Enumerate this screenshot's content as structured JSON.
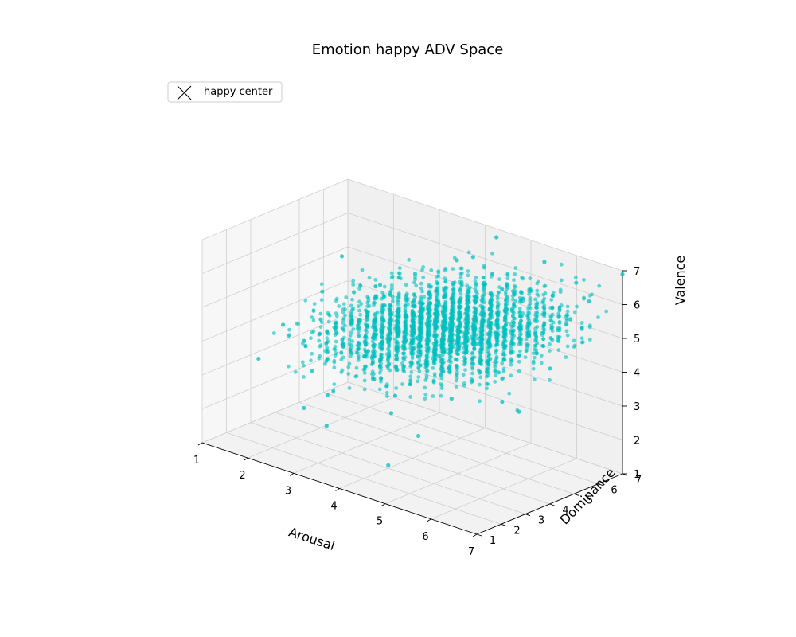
{
  "chart_data": {
    "type": "scatter",
    "projection": "3d",
    "title": "Emotion happy ADV Space",
    "xlabel": "Arousal",
    "ylabel": "Dominance",
    "zlabel": "Valence",
    "xlim": [
      1,
      7
    ],
    "ylim": [
      1,
      7
    ],
    "zlim": [
      1,
      7
    ],
    "x_ticks": [
      "1",
      "2",
      "3",
      "4",
      "5",
      "6",
      "7"
    ],
    "y_ticks": [
      "1",
      "2",
      "3",
      "4",
      "5",
      "6",
      "7"
    ],
    "z_ticks": [
      "1",
      "2",
      "3",
      "4",
      "5",
      "6",
      "7"
    ],
    "grid": true,
    "legend": {
      "placement": "top-left",
      "entries": [
        {
          "label": "happy center",
          "marker": "x",
          "color": "#000000"
        }
      ]
    },
    "series": [
      {
        "color": "#00bfbf",
        "marker": "dot",
        "cluster_summary": "dense cloud spanning Arousal ~1.3-7, Dominance ~1.5-7, Valence ~2-7, centered near (4.5, 4.5, 4.8)",
        "points": [
          [
            1.5,
            5.0,
            4.5
          ],
          [
            1.4,
            6.0,
            5.2
          ],
          [
            1.7,
            2.0,
            3.5
          ],
          [
            1.6,
            3.2,
            4.1
          ],
          [
            2.0,
            4.0,
            4.2
          ],
          [
            2.2,
            3.0,
            3.8
          ],
          [
            2.5,
            5.5,
            5.0
          ],
          [
            2.6,
            2.5,
            3.4
          ],
          [
            2.9,
            4.5,
            4.4
          ],
          [
            3.0,
            6.0,
            5.4
          ],
          [
            3.1,
            2.2,
            3.0
          ],
          [
            3.3,
            3.5,
            4.0
          ],
          [
            3.5,
            5.0,
            4.7
          ],
          [
            3.6,
            4.2,
            4.5
          ],
          [
            3.8,
            2.8,
            3.6
          ],
          [
            4.0,
            6.5,
            6.2
          ],
          [
            4.1,
            4.0,
            4.6
          ],
          [
            4.2,
            3.0,
            4.0
          ],
          [
            4.4,
            5.5,
            5.3
          ],
          [
            4.5,
            4.5,
            4.9
          ],
          [
            4.6,
            2.0,
            3.2
          ],
          [
            4.7,
            3.8,
            4.4
          ],
          [
            4.9,
            6.0,
            5.8
          ],
          [
            5.0,
            5.0,
            5.1
          ],
          [
            5.1,
            3.2,
            4.3
          ],
          [
            5.2,
            4.4,
            4.8
          ],
          [
            5.4,
            6.8,
            6.6
          ],
          [
            5.5,
            5.6,
            5.5
          ],
          [
            5.6,
            2.6,
            3.9
          ],
          [
            5.7,
            4.0,
            4.7
          ],
          [
            5.9,
            6.2,
            6.0
          ],
          [
            6.0,
            5.0,
            5.3
          ],
          [
            6.1,
            3.6,
            4.6
          ],
          [
            6.2,
            6.6,
            6.4
          ],
          [
            6.4,
            4.6,
            5.0
          ],
          [
            6.5,
            5.8,
            5.7
          ],
          [
            6.6,
            2.8,
            4.2
          ],
          [
            6.8,
            6.0,
            6.3
          ],
          [
            6.9,
            4.2,
            4.9
          ],
          [
            7.0,
            7.0,
            6.9
          ],
          [
            3.4,
            1.6,
            2.4
          ],
          [
            2.8,
            1.8,
            2.6
          ],
          [
            5.3,
            1.8,
            2.9
          ],
          [
            4.8,
            1.5,
            1.9
          ],
          [
            6.7,
            3.3,
            3.8
          ],
          [
            4.3,
            6.9,
            6.8
          ],
          [
            3.7,
            6.4,
            6.0
          ],
          [
            2.3,
            4.8,
            4.9
          ]
        ]
      }
    ]
  }
}
